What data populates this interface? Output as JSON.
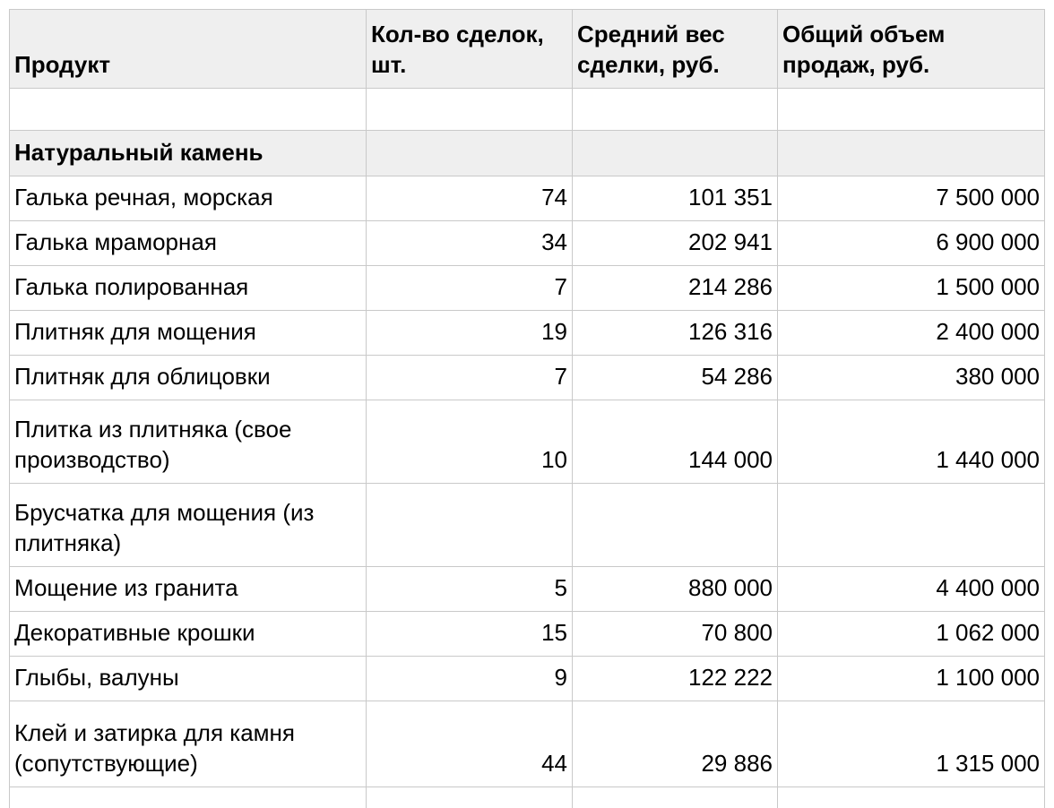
{
  "colors": {
    "background": "#ffffff",
    "gridline": "#c9c9c9",
    "header_fill": "#efefef",
    "section_fill": "#efefef",
    "text": "#000000"
  },
  "table": {
    "columns": [
      {
        "key": "product",
        "label": "Продукт"
      },
      {
        "key": "deals",
        "label": "Кол-во сделок, шт."
      },
      {
        "key": "avg",
        "label": "Средний вес сделки, руб."
      },
      {
        "key": "total",
        "label": "Общий объем продаж, руб."
      }
    ],
    "rows": [
      {
        "type": "empty",
        "product": "",
        "deals": "",
        "avg": "",
        "total": ""
      },
      {
        "type": "section",
        "product": "Натуральный камень",
        "deals": "",
        "avg": "",
        "total": ""
      },
      {
        "type": "data",
        "product": "Галька речная, морская",
        "deals": "74",
        "avg": "101 351",
        "total": "7 500 000"
      },
      {
        "type": "data",
        "product": "Галька мраморная",
        "deals": "34",
        "avg": "202 941",
        "total": "6 900 000"
      },
      {
        "type": "data",
        "product": "Галька полированная",
        "deals": "7",
        "avg": "214 286",
        "total": "1 500 000"
      },
      {
        "type": "data",
        "product": "Плитняк для мощения",
        "deals": "19",
        "avg": "126 316",
        "total": "2 400 000"
      },
      {
        "type": "data",
        "product": "Плитняк для облицовки",
        "deals": "7",
        "avg": "54 286",
        "total": "380 000"
      },
      {
        "type": "data",
        "product": "Плитка из плитняка (свое производство)",
        "deals": "10",
        "avg": "144 000",
        "total": "1 440 000"
      },
      {
        "type": "data",
        "product": "Брусчатка для мощения (из плитняка)",
        "deals": "",
        "avg": "",
        "total": ""
      },
      {
        "type": "data",
        "product": "Мощение из гранита",
        "deals": "5",
        "avg": "880 000",
        "total": "4 400 000"
      },
      {
        "type": "data",
        "product": "Декоративные крошки",
        "deals": "15",
        "avg": "70 800",
        "total": "1 062 000"
      },
      {
        "type": "data",
        "product": "Глыбы, валуны",
        "deals": "9",
        "avg": "122 222",
        "total": "1 100 000"
      },
      {
        "type": "data",
        "product": "Клей и затирка для камня (сопутствующие)",
        "deals": "44",
        "avg": "29 886",
        "total": "1 315 000"
      },
      {
        "type": "empty",
        "partial": true,
        "product": "",
        "deals": "",
        "avg": "",
        "total": ""
      }
    ]
  }
}
